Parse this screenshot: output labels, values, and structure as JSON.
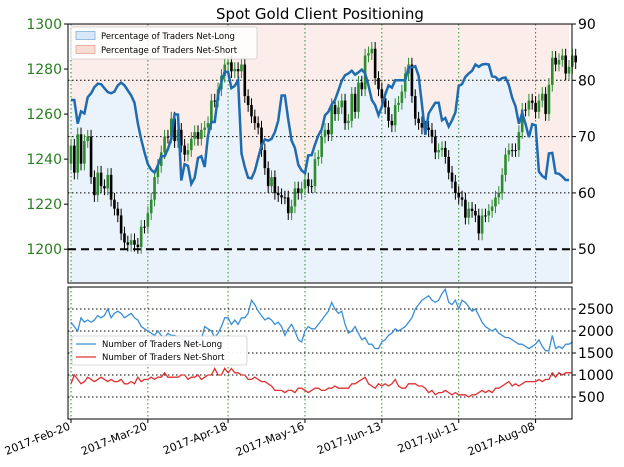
{
  "chart_data": [
    {
      "type": "candlestick+line",
      "title": "Spot Gold Client Positioning",
      "left_axis": {
        "ticks": [
          1200,
          1220,
          1240,
          1260,
          1280,
          1300
        ],
        "ylim": [
          1185,
          1300
        ]
      },
      "right_axis": {
        "ticks": [
          50,
          60,
          70,
          80,
          90
        ],
        "ylim": [
          44,
          90
        ]
      },
      "legend": [
        "Percentage of Traders Net-Long",
        "Percentage of Traders Net-Short"
      ],
      "legend_placement": "top-left",
      "x_ticks": [
        "2017-Feb-20",
        "2017-Mar-20",
        "2017-Apr-18",
        "2017-May-16",
        "2017-Jun-13",
        "2017-Jul-11",
        "2017-Aug-08"
      ],
      "net_long_pct": [
        76.5,
        76.5,
        72.3,
        74.5,
        74.1,
        77.0,
        77.7,
        78.8,
        79.4,
        79.3,
        78.6,
        77.9,
        77.7,
        78.0,
        79.1,
        79.6,
        79.1,
        78.2,
        77.3,
        76.0,
        72.4,
        69.5,
        67.2,
        65.1,
        64.1,
        63.6,
        64.9,
        66.5,
        66.5,
        67.8,
        69.6,
        74.0,
        73.9,
        62.2,
        65.1,
        64.8,
        61.6,
        62.7,
        66.2,
        66.5,
        64.6,
        70.2,
        72.6,
        72.6,
        77.4,
        79.7,
        81.5,
        81.5,
        78.6,
        79.0,
        80.0,
        67.0,
        64.6,
        62.7,
        62.6,
        63.9,
        66.2,
        68.4,
        69.5,
        69.3,
        69.6,
        70.8,
        72.8,
        77.3,
        77.3,
        73.1,
        69.3,
        68.0,
        65.0,
        64.0,
        63.5,
        66.7,
        66.7,
        68.6,
        70.2,
        71.3,
        73.8,
        74.4,
        75.7,
        76.5,
        78.2,
        79.9,
        80.9,
        81.2,
        81.7,
        81.0,
        81.4,
        81.9,
        81.2,
        79.1,
        76.5,
        75.6,
        73.8,
        75.3,
        77.5,
        79.1,
        78.7,
        80.0,
        80.0,
        80.0,
        80.0,
        82.3,
        82.3,
        82.5,
        80.8,
        75.8,
        70.3,
        74.1,
        75.1,
        76.0,
        76.0,
        72.9,
        73.3,
        71.8,
        72.9,
        74.3,
        79.0,
        79.3,
        80.6,
        81.2,
        81.7,
        82.8,
        82.4,
        82.8,
        82.9,
        82.8,
        80.7,
        80.6,
        80.0,
        80.4,
        80.5,
        79.2,
        76.9,
        75.4,
        72.3,
        74.2,
        72.2,
        69.9,
        72.2,
        72.0,
        63.8,
        63.0,
        62.6,
        67.0,
        67.1,
        63.5,
        63.4,
        62.9,
        62.3,
        62.3
      ],
      "price_open": [
        1238,
        1246,
        1234,
        1251,
        1238,
        1248,
        1250,
        1232,
        1224,
        1234,
        1228,
        1227,
        1233,
        1222,
        1218,
        1215,
        1207,
        1203,
        1202,
        1204,
        1202,
        1201,
        1210,
        1210,
        1216,
        1222,
        1232,
        1237,
        1243,
        1250,
        1250,
        1258,
        1248,
        1253,
        1246,
        1242,
        1244,
        1249,
        1252,
        1249,
        1253,
        1254,
        1256,
        1266,
        1266,
        1271,
        1277,
        1282,
        1283,
        1279,
        1280,
        1279,
        1282,
        1268,
        1264,
        1259,
        1256,
        1254,
        1244,
        1236,
        1228,
        1232,
        1225,
        1224,
        1223,
        1223,
        1216,
        1219,
        1227,
        1225,
        1227,
        1231,
        1228,
        1228,
        1240,
        1241,
        1250,
        1253,
        1251,
        1264,
        1260,
        1263,
        1266,
        1256,
        1257,
        1269,
        1261,
        1274,
        1271,
        1286,
        1287,
        1289,
        1276,
        1271,
        1267,
        1263,
        1257,
        1255,
        1264,
        1265,
        1270,
        1278,
        1282,
        1268,
        1258,
        1256,
        1254,
        1254,
        1253,
        1250,
        1243,
        1244,
        1245,
        1241,
        1234,
        1230,
        1225,
        1223,
        1222,
        1214,
        1218,
        1217,
        1215,
        1207,
        1215,
        1215,
        1217,
        1219,
        1223,
        1225,
        1233,
        1242,
        1244,
        1244,
        1244,
        1252,
        1262,
        1262,
        1266,
        1265,
        1261,
        1266,
        1269,
        1260,
        1273,
        1285,
        1282,
        1284,
        1286,
        1278,
        1281,
        1286
      ],
      "price_close": [
        1246,
        1234,
        1251,
        1238,
        1248,
        1250,
        1232,
        1224,
        1234,
        1228,
        1227,
        1233,
        1222,
        1218,
        1215,
        1207,
        1203,
        1202,
        1204,
        1202,
        1201,
        1210,
        1210,
        1216,
        1222,
        1232,
        1237,
        1243,
        1250,
        1250,
        1258,
        1248,
        1253,
        1246,
        1242,
        1244,
        1249,
        1252,
        1249,
        1253,
        1254,
        1256,
        1266,
        1266,
        1271,
        1277,
        1282,
        1283,
        1279,
        1280,
        1279,
        1282,
        1268,
        1264,
        1259,
        1256,
        1254,
        1244,
        1236,
        1228,
        1232,
        1225,
        1224,
        1223,
        1223,
        1216,
        1219,
        1227,
        1225,
        1227,
        1231,
        1228,
        1228,
        1240,
        1241,
        1250,
        1253,
        1251,
        1264,
        1260,
        1263,
        1266,
        1256,
        1257,
        1269,
        1261,
        1274,
        1271,
        1286,
        1287,
        1289,
        1276,
        1271,
        1267,
        1263,
        1257,
        1255,
        1264,
        1265,
        1270,
        1278,
        1282,
        1268,
        1258,
        1256,
        1254,
        1254,
        1253,
        1250,
        1243,
        1244,
        1245,
        1241,
        1234,
        1230,
        1225,
        1223,
        1222,
        1214,
        1218,
        1217,
        1215,
        1207,
        1215,
        1215,
        1217,
        1219,
        1223,
        1225,
        1233,
        1242,
        1244,
        1244,
        1244,
        1252,
        1262,
        1262,
        1266,
        1265,
        1261,
        1266,
        1269,
        1260,
        1273,
        1285,
        1282,
        1284,
        1286,
        1278,
        1281,
        1286,
        1283
      ],
      "colors": {
        "long": "#1f6bb0",
        "up": "#2e8b2e",
        "down": "#000000",
        "neutral": "#000000"
      }
    },
    {
      "type": "line",
      "ylim": [
        0,
        3000
      ],
      "right_ticks": [
        500,
        1000,
        1500,
        2000,
        2500
      ],
      "legend": [
        "Number of Traders Net-Long",
        "Number of Traders Net-Short"
      ],
      "legend_placement": "middle-left",
      "series": [
        {
          "name": "Number of Traders Net-Long",
          "color": "#3a8fd8",
          "values": [
            2200,
            2100,
            2000,
            2300,
            2200,
            2250,
            2200,
            2250,
            2350,
            2300,
            2350,
            2500,
            2300,
            2400,
            2450,
            2400,
            2300,
            2350,
            2400,
            2300,
            2250,
            2100,
            2050,
            2000,
            1950,
            1900,
            2000,
            1900,
            1850,
            1950,
            1900,
            1900,
            1850,
            1850,
            1750,
            1700,
            1650,
            1700,
            1850,
            1800,
            2100,
            2050,
            2000,
            1850,
            1950,
            2100,
            2300,
            2300,
            2150,
            2250,
            2150,
            2300,
            2300,
            2400,
            2700,
            2600,
            2450,
            2350,
            2250,
            2300,
            2250,
            2150,
            2200,
            2100,
            1900,
            2050,
            2150,
            2000,
            1800,
            1750,
            2000,
            2100,
            2050,
            2050,
            2150,
            2250,
            2350,
            2450,
            2650,
            2500,
            2400,
            2450,
            2150,
            1950,
            2000,
            2100,
            1950,
            1800,
            1850,
            1700,
            1700,
            1600,
            1600,
            1750,
            1800,
            1900,
            1950,
            2050,
            2000,
            2050,
            2100,
            2200,
            2300,
            2500,
            2600,
            2700,
            2750,
            2800,
            2700,
            2650,
            2700,
            2850,
            2950,
            2650,
            2600,
            2700,
            2500,
            2700,
            2650,
            2550,
            2450,
            2500,
            2350,
            2200,
            2100,
            2050,
            2000,
            2050,
            1950,
            1900,
            1850,
            1850,
            1800,
            1750,
            1700,
            1700,
            1650,
            1600,
            1650,
            1700,
            1800,
            1650,
            1550,
            1550,
            1900,
            1600,
            1650,
            1600,
            1700,
            1700,
            1750
          ]
        },
        {
          "name": "Number of Traders Net-Short",
          "color": "#e03030",
          "values": [
            800,
            1000,
            900,
            800,
            850,
            950,
            900,
            850,
            900,
            950,
            900,
            850,
            900,
            850,
            850,
            900,
            800,
            800,
            850,
            800,
            950,
            850,
            900,
            900,
            950,
            900,
            950,
            950,
            1050,
            950,
            950,
            950,
            950,
            1000,
            1000,
            900,
            950,
            950,
            1000,
            900,
            950,
            1000,
            1000,
            1150,
            1000,
            1000,
            1150,
            1050,
            1150,
            1050,
            1050,
            1000,
            1000,
            900,
            900,
            950,
            900,
            850,
            850,
            800,
            750,
            650,
            650,
            650,
            600,
            650,
            650,
            600,
            700,
            700,
            650,
            600,
            650,
            700,
            700,
            650,
            650,
            700,
            700,
            750,
            700,
            700,
            700,
            700,
            800,
            800,
            850,
            900,
            950,
            800,
            750,
            700,
            800,
            750,
            800,
            750,
            800,
            900,
            750,
            700,
            700,
            800,
            800,
            800,
            750,
            750,
            700,
            600,
            650,
            550,
            600,
            600,
            650,
            600,
            550,
            600,
            550,
            550,
            550,
            500,
            550,
            550,
            600,
            650,
            600,
            650,
            600,
            700,
            700,
            750,
            800,
            850,
            750,
            800,
            750,
            800,
            850,
            850,
            850,
            850,
            900,
            850,
            900,
            900,
            1050,
            950,
            1050,
            1000,
            1050,
            1050,
            1050
          ]
        }
      ]
    }
  ]
}
